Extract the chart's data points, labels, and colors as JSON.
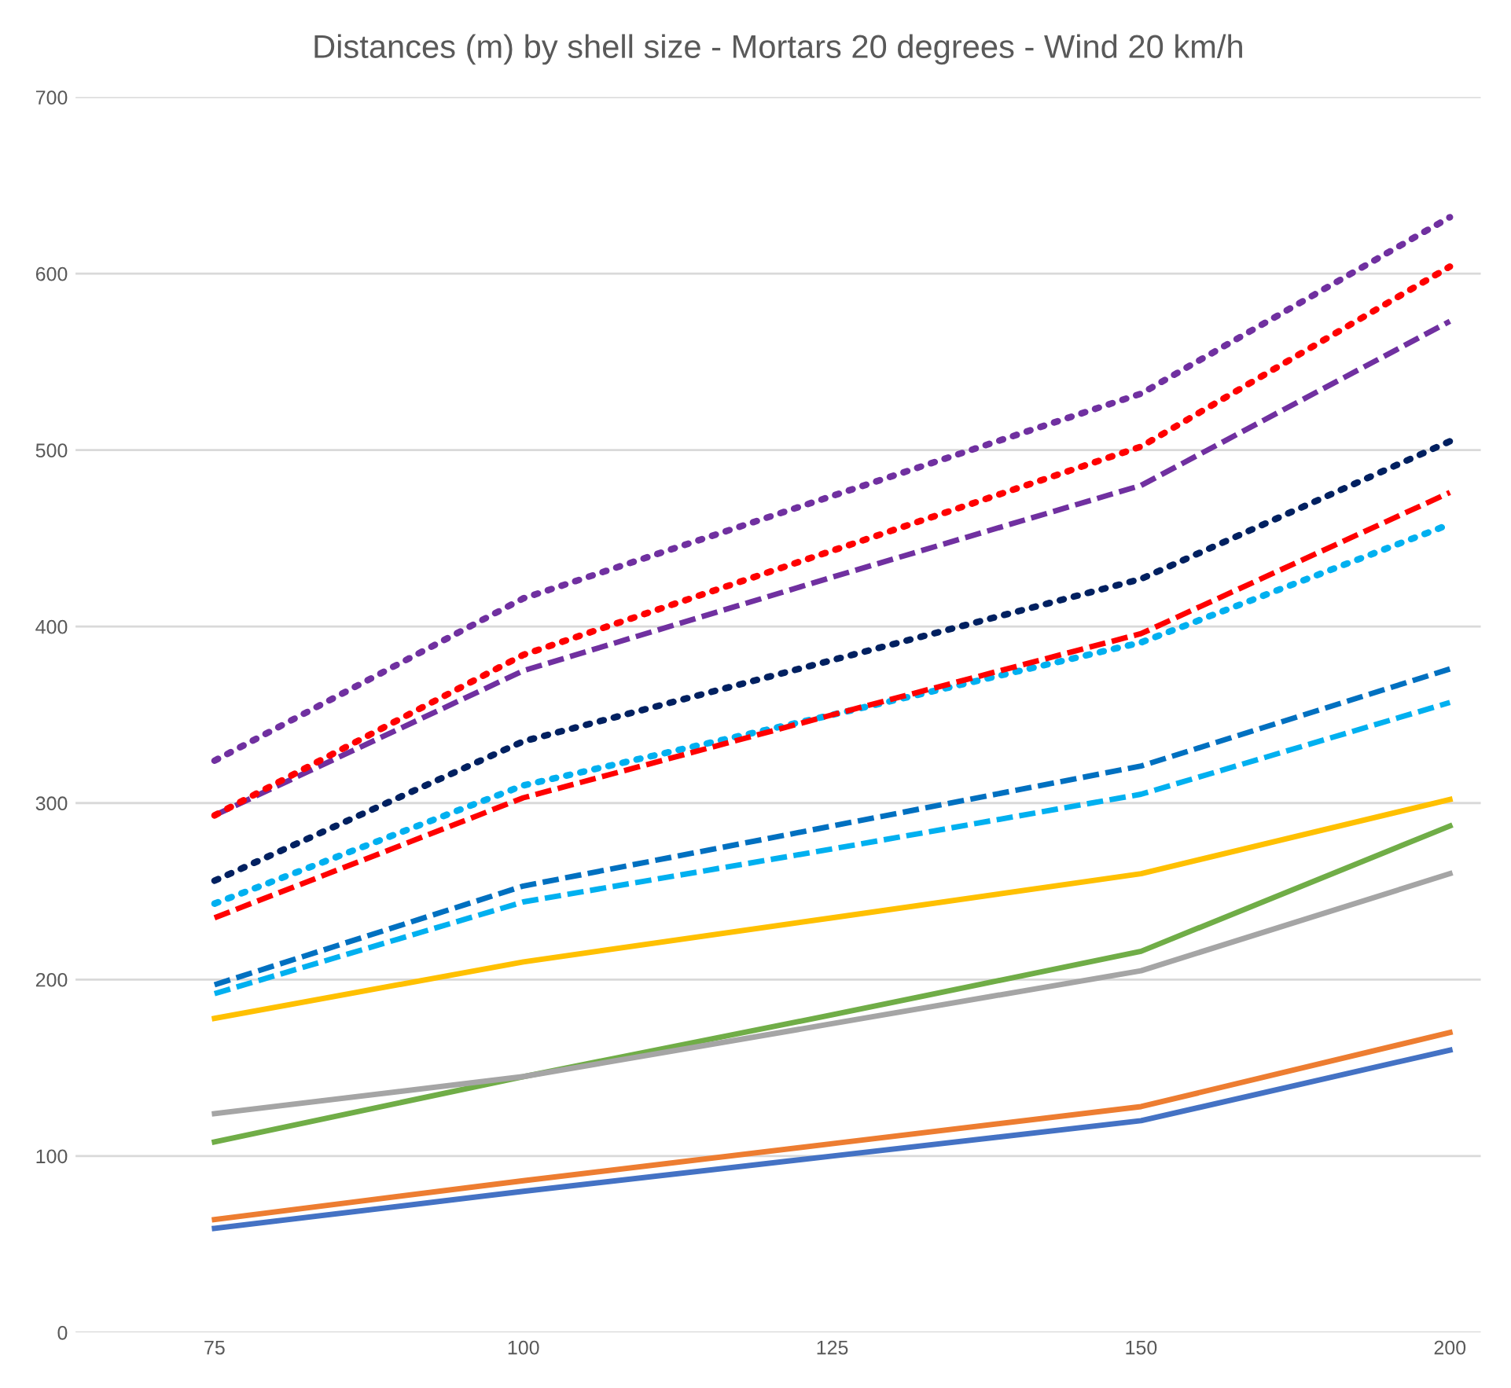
{
  "chart_data": {
    "type": "line",
    "title": "Distances (m) by shell size - Mortars 20 degrees - Wind 20 km/h",
    "categories": [
      "75",
      "100",
      "125",
      "150",
      "200"
    ],
    "ylim": [
      0,
      700
    ],
    "yticks": [
      0,
      100,
      200,
      300,
      400,
      500,
      600,
      700
    ],
    "grid": "y",
    "legend": false,
    "marker": "none",
    "series": [
      {
        "color": "#4472c4",
        "line_style": "solid",
        "values": [
          59,
          80,
          100,
          120,
          160
        ]
      },
      {
        "color": "#ed7d31",
        "line_style": "solid",
        "values": [
          64,
          86,
          107,
          128,
          170
        ]
      },
      {
        "color": "#70ad47",
        "line_style": "solid",
        "values": [
          108,
          145,
          180,
          216,
          287
        ]
      },
      {
        "color": "#a5a5a5",
        "line_style": "solid",
        "values": [
          124,
          145,
          175,
          205,
          260
        ]
      },
      {
        "color": "#ffc000",
        "line_style": "solid",
        "values": [
          178,
          210,
          235,
          260,
          302
        ]
      },
      {
        "color": "#00b0f0",
        "line_style": "dashed",
        "values": [
          192,
          244,
          274,
          305,
          357
        ]
      },
      {
        "color": "#0070c0",
        "line_style": "dashed",
        "values": [
          197,
          253,
          287,
          321,
          376
        ]
      },
      {
        "color": "#00b0f0",
        "line_style": "dotted",
        "values": [
          243,
          310,
          350,
          391,
          458
        ]
      },
      {
        "color": "#ff0000",
        "line_style": "dashed",
        "values": [
          235,
          303,
          350,
          396,
          476
        ]
      },
      {
        "color": "#002060",
        "line_style": "dotted",
        "values": [
          256,
          335,
          381,
          427,
          505
        ]
      },
      {
        "color": "#7030a0",
        "line_style": "dashed",
        "values": [
          293,
          375,
          428,
          480,
          573
        ]
      },
      {
        "color": "#ff0000",
        "line_style": "dotted",
        "values": [
          293,
          384,
          443,
          502,
          604
        ]
      },
      {
        "color": "#7030a0",
        "line_style": "dotted",
        "values": [
          324,
          416,
          474,
          532,
          632
        ]
      }
    ]
  }
}
